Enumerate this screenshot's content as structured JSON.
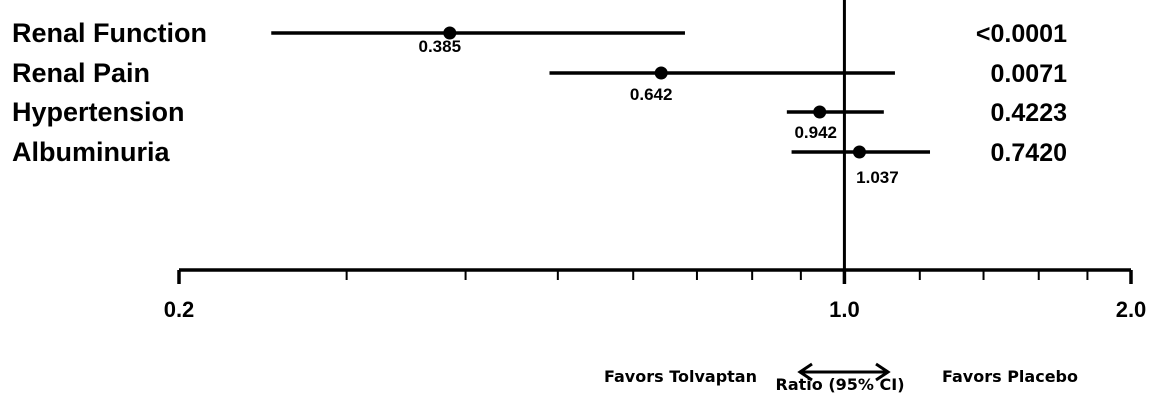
{
  "chart_data": {
    "type": "forest",
    "x_scale": "log",
    "xlim": [
      0.2,
      2.0
    ],
    "x_ticks": [
      0.2,
      1.0,
      2.0
    ],
    "x_tick_labels": [
      "0.2",
      "1.0",
      "2.0"
    ],
    "x_minor_ticks": [
      0.3,
      0.4,
      0.5,
      0.6,
      0.7,
      0.8,
      0.9,
      1.2,
      1.4,
      1.6,
      1.8
    ],
    "reference_line": 1.0,
    "xlabel": "Ratio (95% CI)",
    "favors_left": "Favors Tolvaptan",
    "favors_right": "Favors Placebo",
    "rows": [
      {
        "label": "Renal Function",
        "estimate": 0.385,
        "estimate_label": "0.385",
        "ci_low": 0.25,
        "ci_high": 0.68,
        "p_value": "<0.0001"
      },
      {
        "label": "Renal Pain",
        "estimate": 0.642,
        "estimate_label": "0.642",
        "ci_low": 0.49,
        "ci_high": 1.13,
        "p_value": "0.0071"
      },
      {
        "label": "Hypertension",
        "estimate": 0.942,
        "estimate_label": "0.942",
        "ci_low": 0.87,
        "ci_high": 1.1,
        "p_value": "0.4223"
      },
      {
        "label": "Albuminuria",
        "estimate": 1.037,
        "estimate_label": "1.037",
        "ci_low": 0.88,
        "ci_high": 1.23,
        "p_value": "0.7420"
      }
    ]
  }
}
